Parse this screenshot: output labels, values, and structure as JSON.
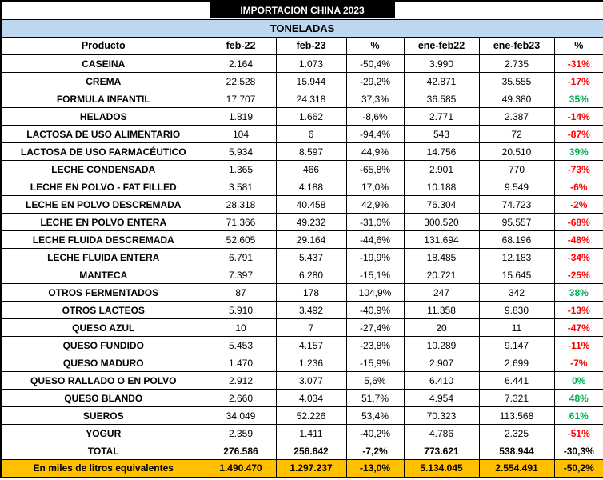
{
  "chart_data": {
    "type": "table",
    "title": "IMPORTACION CHINA 2023",
    "subtitle": "TONELADAS",
    "columns": [
      "Producto",
      "feb-22",
      "feb-23",
      "%",
      "ene-feb22",
      "ene-feb23",
      "%"
    ],
    "rows": [
      [
        "CASEINA",
        "2.164",
        "1.073",
        "-50,4%",
        "3.990",
        "2.735",
        "-31%"
      ],
      [
        "CREMA",
        "22.528",
        "15.944",
        "-29,2%",
        "42.871",
        "35.555",
        "-17%"
      ],
      [
        "FORMULA INFANTIL",
        "17.707",
        "24.318",
        "37,3%",
        "36.585",
        "49.380",
        "35%"
      ],
      [
        "HELADOS",
        "1.819",
        "1.662",
        "-8,6%",
        "2.771",
        "2.387",
        "-14%"
      ],
      [
        "LACTOSA DE USO ALIMENTARIO",
        "104",
        "6",
        "-94,4%",
        "543",
        "72",
        "-87%"
      ],
      [
        "LACTOSA DE USO FARMACÉUTICO",
        "5.934",
        "8.597",
        "44,9%",
        "14.756",
        "20.510",
        "39%"
      ],
      [
        "LECHE CONDENSADA",
        "1.365",
        "466",
        "-65,8%",
        "2.901",
        "770",
        "-73%"
      ],
      [
        "LECHE EN POLVO - FAT FILLED",
        "3.581",
        "4.188",
        "17,0%",
        "10.188",
        "9.549",
        "-6%"
      ],
      [
        "LECHE EN POLVO DESCREMADA",
        "28.318",
        "40.458",
        "42,9%",
        "76.304",
        "74.723",
        "-2%"
      ],
      [
        "LECHE EN POLVO ENTERA",
        "71.366",
        "49.232",
        "-31,0%",
        "300.520",
        "95.557",
        "-68%"
      ],
      [
        "LECHE FLUIDA DESCREMADA",
        "52.605",
        "29.164",
        "-44,6%",
        "131.694",
        "68.196",
        "-48%"
      ],
      [
        "LECHE FLUIDA ENTERA",
        "6.791",
        "5.437",
        "-19,9%",
        "18.485",
        "12.183",
        "-34%"
      ],
      [
        "MANTECA",
        "7.397",
        "6.280",
        "-15,1%",
        "20.721",
        "15.645",
        "-25%"
      ],
      [
        "OTROS FERMENTADOS",
        "87",
        "178",
        "104,9%",
        "247",
        "342",
        "38%"
      ],
      [
        "OTROS LACTEOS",
        "5.910",
        "3.492",
        "-40,9%",
        "11.358",
        "9.830",
        "-13%"
      ],
      [
        "QUESO AZUL",
        "10",
        "7",
        "-27,4%",
        "20",
        "11",
        "-47%"
      ],
      [
        "QUESO FUNDIDO",
        "5.453",
        "4.157",
        "-23,8%",
        "10.289",
        "9.147",
        "-11%"
      ],
      [
        "QUESO MADURO",
        "1.470",
        "1.236",
        "-15,9%",
        "2.907",
        "2.699",
        "-7%"
      ],
      [
        "QUESO RALLADO O EN POLVO",
        "2.912",
        "3.077",
        "5,6%",
        "6.410",
        "6.441",
        "0%"
      ],
      [
        "QUESO BLANDO",
        "2.660",
        "4.034",
        "51,7%",
        "4.954",
        "7.321",
        "48%"
      ],
      [
        "SUEROS",
        "34.049",
        "52.226",
        "53,4%",
        "70.323",
        "113.568",
        "61%"
      ],
      [
        "YOGUR",
        "2.359",
        "1.411",
        "-40,2%",
        "4.786",
        "2.325",
        "-51%"
      ]
    ],
    "total_row": [
      "TOTAL",
      "276.586",
      "256.642",
      "-7,2%",
      "773.621",
      "538.944",
      "-30,3%"
    ],
    "equivalents_row": [
      "En miles de litros equivalentes",
      "1.490.470",
      "1.297.237",
      "-13,0%",
      "5.134.045",
      "2.554.491",
      "-50,2%"
    ]
  },
  "colors": {
    "negative": "#FF0000",
    "positive": "#00B050",
    "subtitle_bg": "#BDD7EE",
    "equivalents_bg": "#FFC000",
    "title_bg": "#000000"
  }
}
